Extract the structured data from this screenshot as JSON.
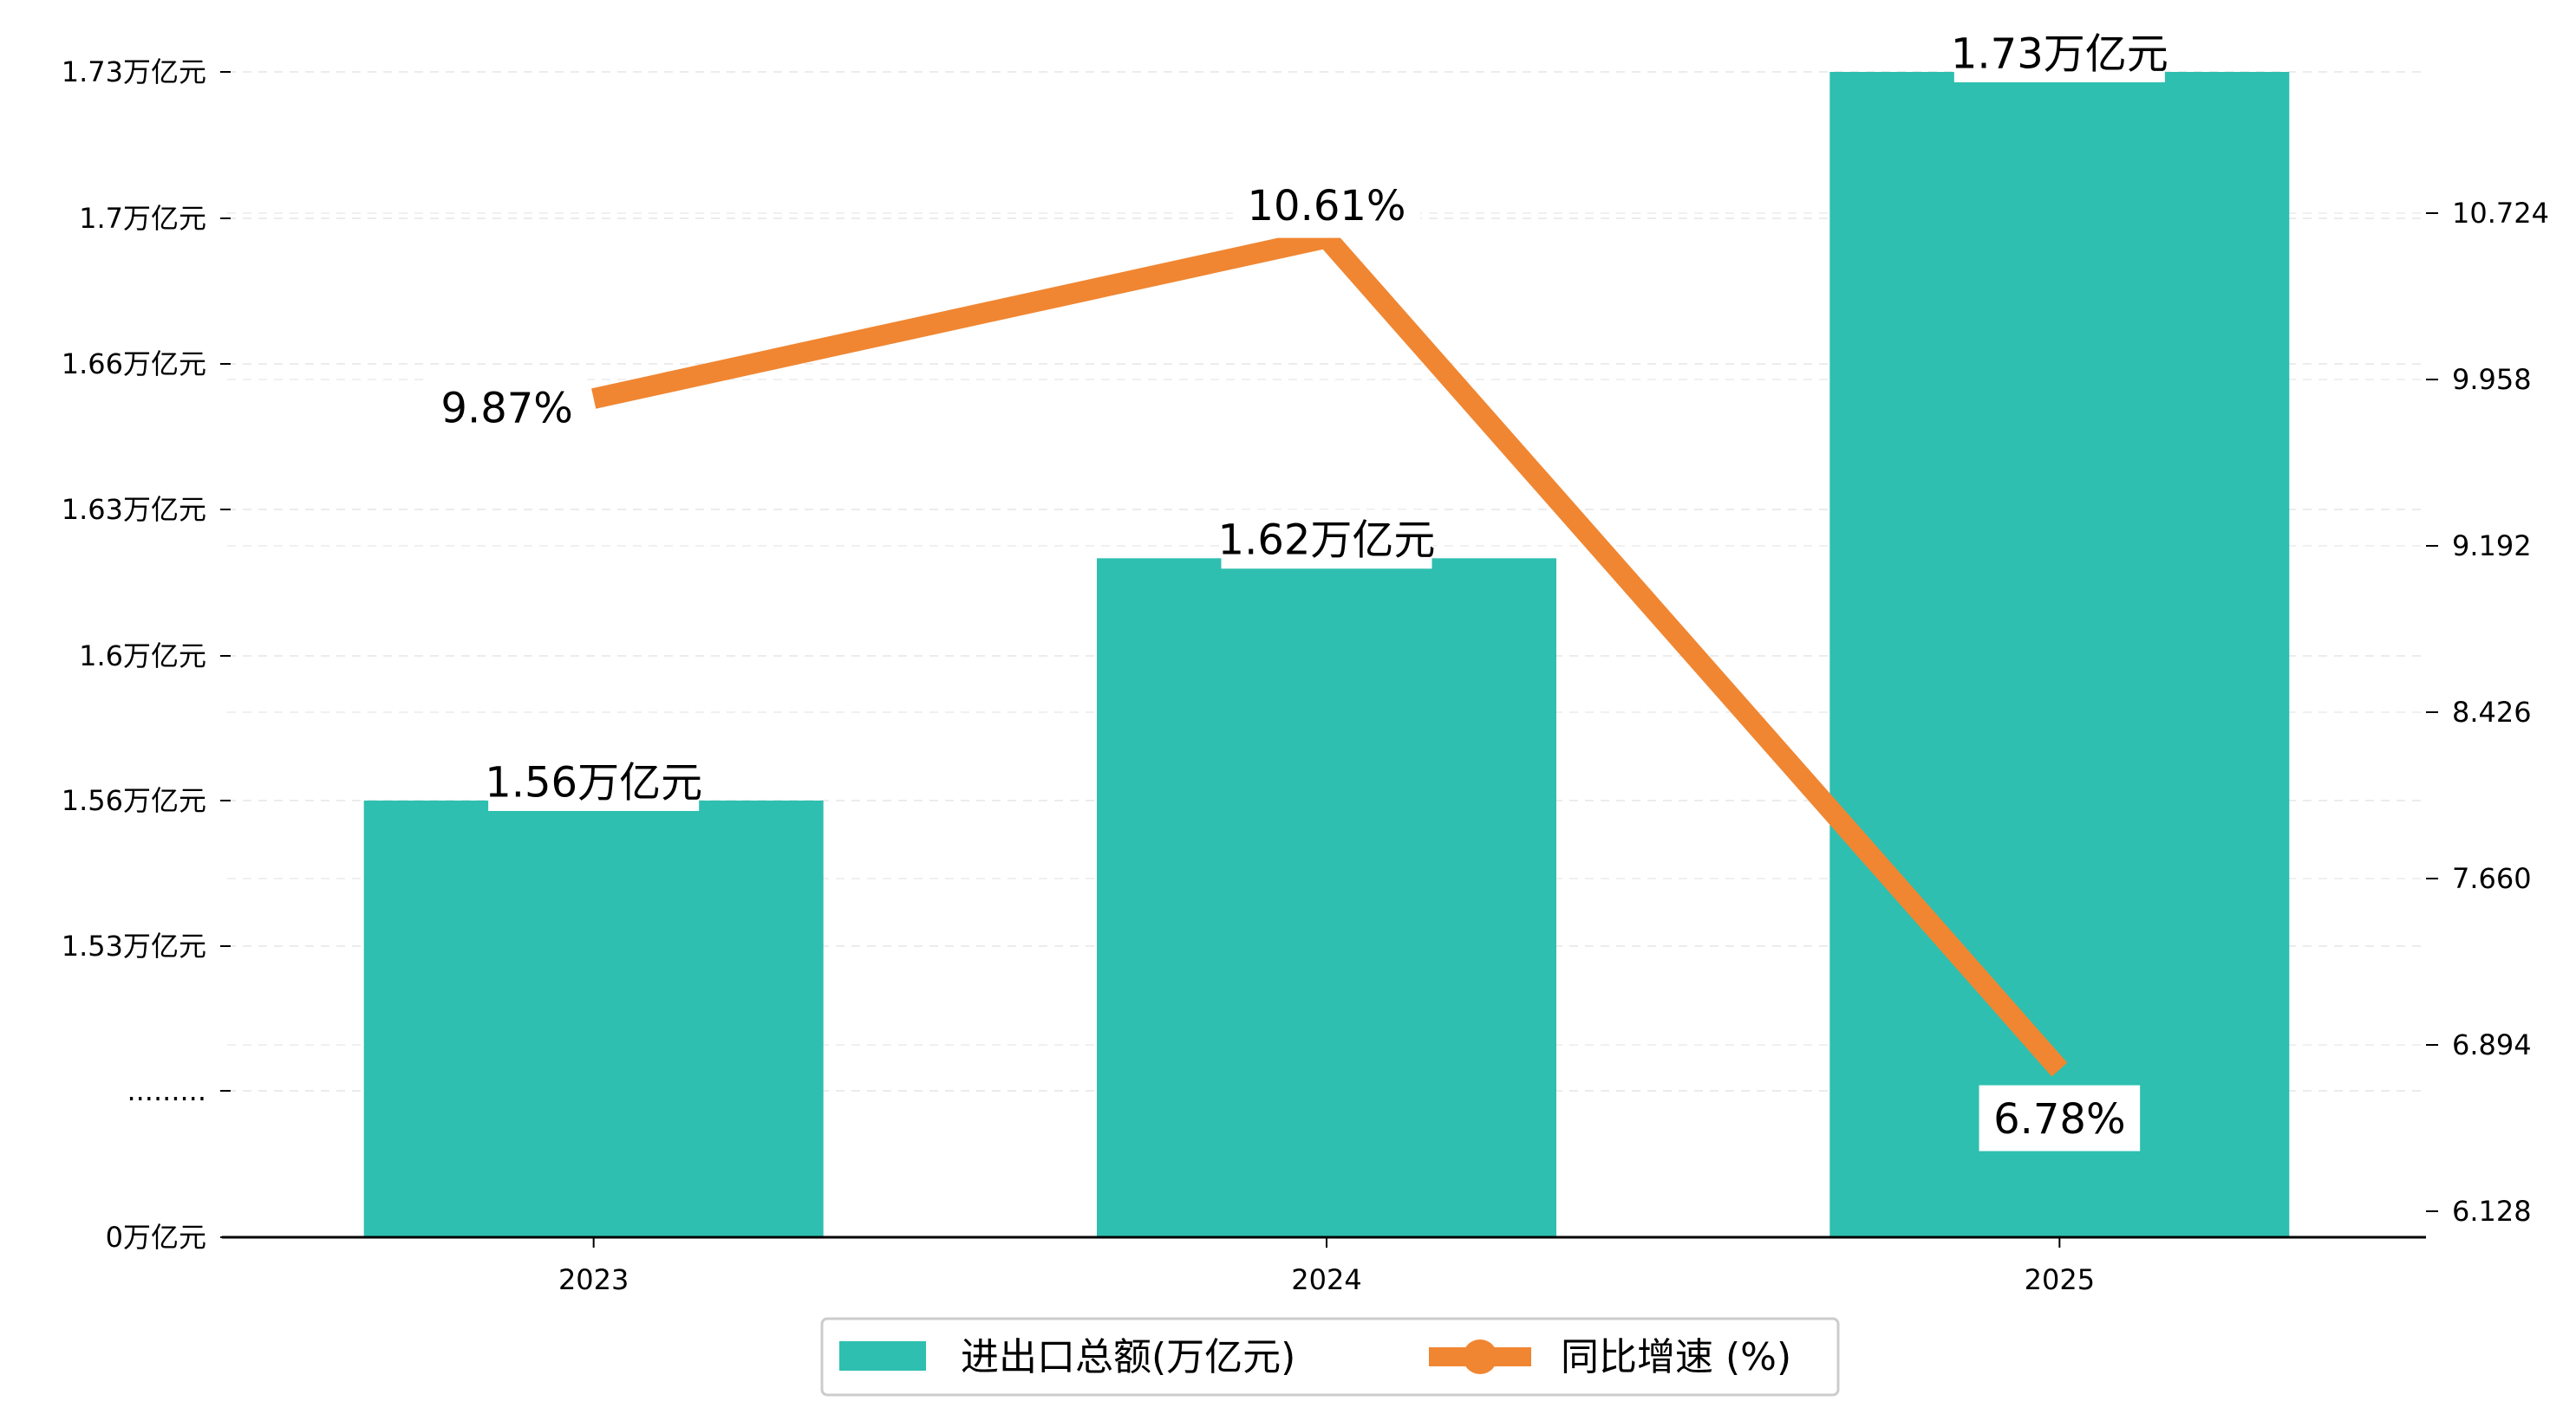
{
  "chart_data": {
    "type": "bar",
    "categories": [
      "2023",
      "2024",
      "2025"
    ],
    "series": [
      {
        "name": "进出口总额(万亿元)",
        "type": "bar",
        "axis": "left",
        "values": [
          1.56,
          1.62,
          1.73
        ],
        "labels": [
          "1.56万亿元",
          "1.62万亿元",
          "1.73万亿元"
        ],
        "color": "#2ebfb0"
      },
      {
        "name": "同比增速 (%)",
        "type": "line",
        "axis": "right",
        "values": [
          9.87,
          10.61,
          6.78
        ],
        "labels": [
          "9.87%",
          "10.61%",
          "6.78%"
        ],
        "color": "#f08632"
      }
    ],
    "y_left": {
      "ticks": [
        {
          "value": 0,
          "label": "0万亿元"
        },
        {
          "value": 1.5,
          "label": "........."
        },
        {
          "value": 1.53,
          "label": "1.53万亿元"
        },
        {
          "value": 1.56,
          "label": "1.56万亿元"
        },
        {
          "value": 1.6,
          "label": "1.6万亿元"
        },
        {
          "value": 1.63,
          "label": "1.63万亿元"
        },
        {
          "value": 1.66,
          "label": "1.66万亿元"
        },
        {
          "value": 1.7,
          "label": "1.7万亿元"
        },
        {
          "value": 1.73,
          "label": "1.73万亿元"
        }
      ],
      "broken": true
    },
    "y_right": {
      "ylim": [
        6.128,
        11.49
      ],
      "ticks": [
        {
          "value": 6.128,
          "label": "6.128"
        },
        {
          "value": 6.894,
          "label": "6.894"
        },
        {
          "value": 7.66,
          "label": "7.660"
        },
        {
          "value": 8.426,
          "label": "8.426"
        },
        {
          "value": 9.192,
          "label": "9.192"
        },
        {
          "value": 9.958,
          "label": "9.958"
        },
        {
          "value": 10.724,
          "label": "10.724"
        }
      ]
    },
    "grid": true,
    "legend_position": "bottom-center"
  }
}
